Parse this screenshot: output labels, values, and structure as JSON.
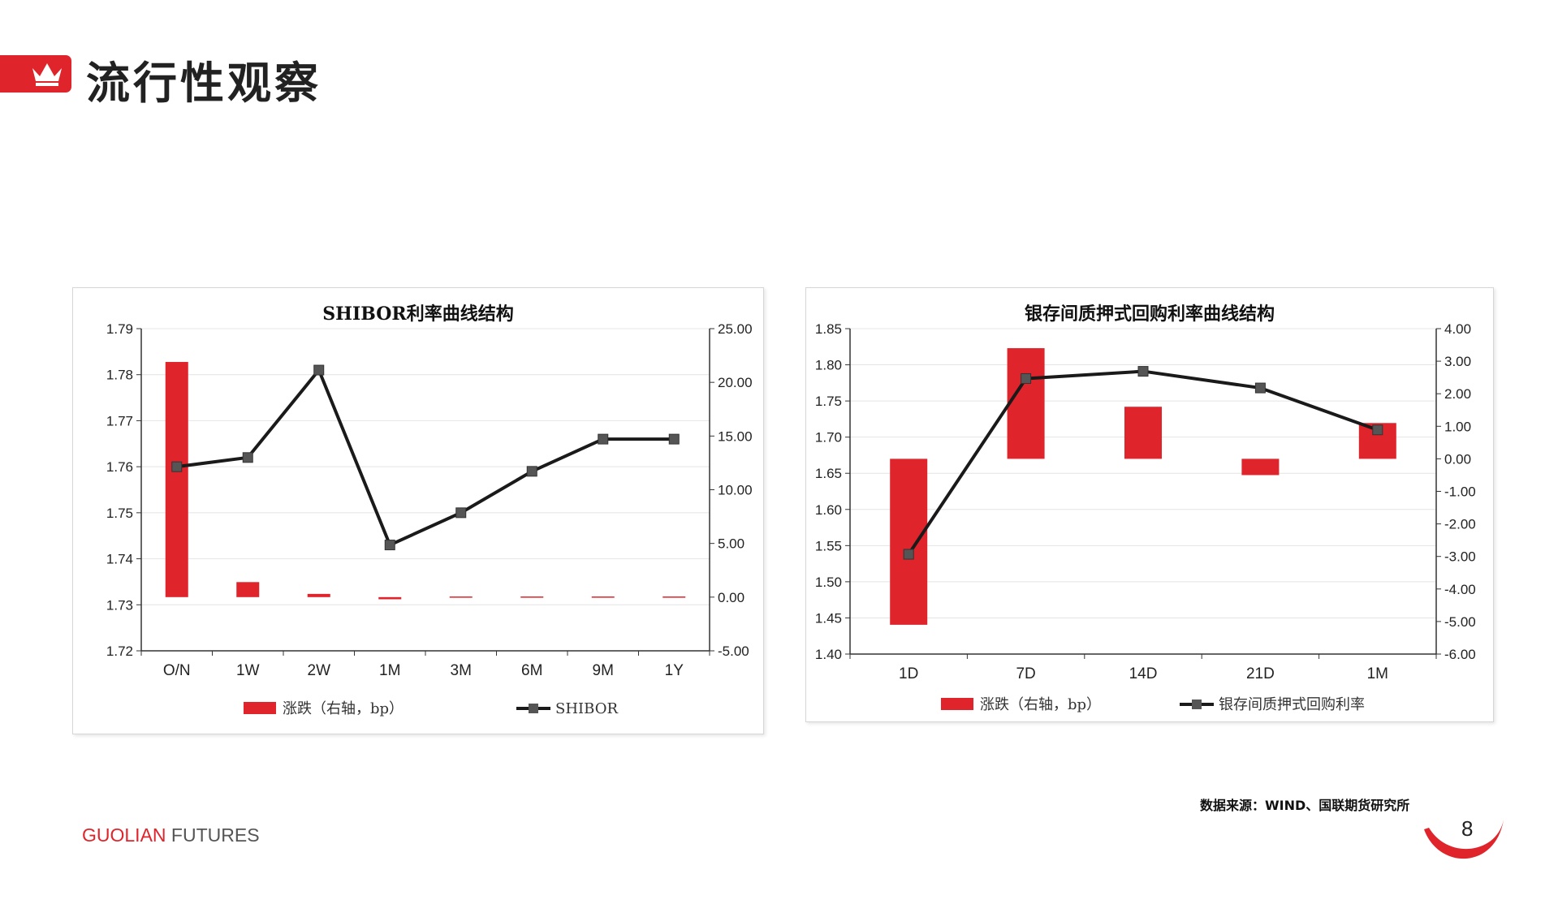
{
  "header": {
    "title": "流行性观察"
  },
  "footer": {
    "source": "数据来源：WIND、国联期货研究所",
    "brand_part1": "GUOLIAN",
    "brand_part2": " FUTURES",
    "page_number": "8"
  },
  "colors": {
    "accent": "#e0242b",
    "line": "#1a1a1a",
    "marker": "#555555"
  },
  "chart_data": [
    {
      "type": "bar+line",
      "title": "SHIBOR利率曲线结构",
      "categories": [
        "O/N",
        "1W",
        "2W",
        "1M",
        "3M",
        "6M",
        "9M",
        "1Y"
      ],
      "series": [
        {
          "name": "涨跌（右轴，bp）",
          "type": "bar",
          "axis": "right",
          "values": [
            21.9,
            1.4,
            0.3,
            -0.2,
            -0.1,
            -0.1,
            -0.1,
            -0.1
          ]
        },
        {
          "name": "SHIBOR",
          "type": "line",
          "axis": "left",
          "values": [
            1.76,
            1.762,
            1.781,
            1.743,
            1.75,
            1.759,
            1.766,
            1.766
          ]
        }
      ],
      "ylim_left": [
        1.72,
        1.79
      ],
      "yticks_left": [
        "1.79",
        "1.78",
        "1.77",
        "1.76",
        "1.75",
        "1.74",
        "1.73",
        "1.72"
      ],
      "ylim_right": [
        -5,
        25
      ],
      "yticks_right": [
        "25.00",
        "20.00",
        "15.00",
        "10.00",
        "5.00",
        "0.00",
        "-5.00"
      ],
      "legend": "bottom"
    },
    {
      "type": "bar+line",
      "title": "银存间质押式回购利率曲线结构",
      "categories": [
        "1D",
        "7D",
        "14D",
        "21D",
        "1M"
      ],
      "series": [
        {
          "name": "涨跌（右轴，bp）",
          "type": "bar",
          "axis": "right",
          "values": [
            -5.1,
            3.4,
            1.6,
            -0.5,
            1.1
          ]
        },
        {
          "name": "银存间质押式回购利率",
          "type": "line",
          "axis": "left",
          "values": [
            1.538,
            1.781,
            1.791,
            1.768,
            1.71
          ]
        }
      ],
      "ylim_left": [
        1.4,
        1.85
      ],
      "yticks_left": [
        "1.85",
        "1.80",
        "1.75",
        "1.70",
        "1.65",
        "1.60",
        "1.55",
        "1.50",
        "1.45",
        "1.40"
      ],
      "ylim_right": [
        -6,
        4
      ],
      "yticks_right": [
        "4.00",
        "3.00",
        "2.00",
        "1.00",
        "0.00",
        "-1.00",
        "-2.00",
        "-3.00",
        "-4.00",
        "-5.00",
        "-6.00"
      ],
      "legend": "bottom"
    }
  ]
}
